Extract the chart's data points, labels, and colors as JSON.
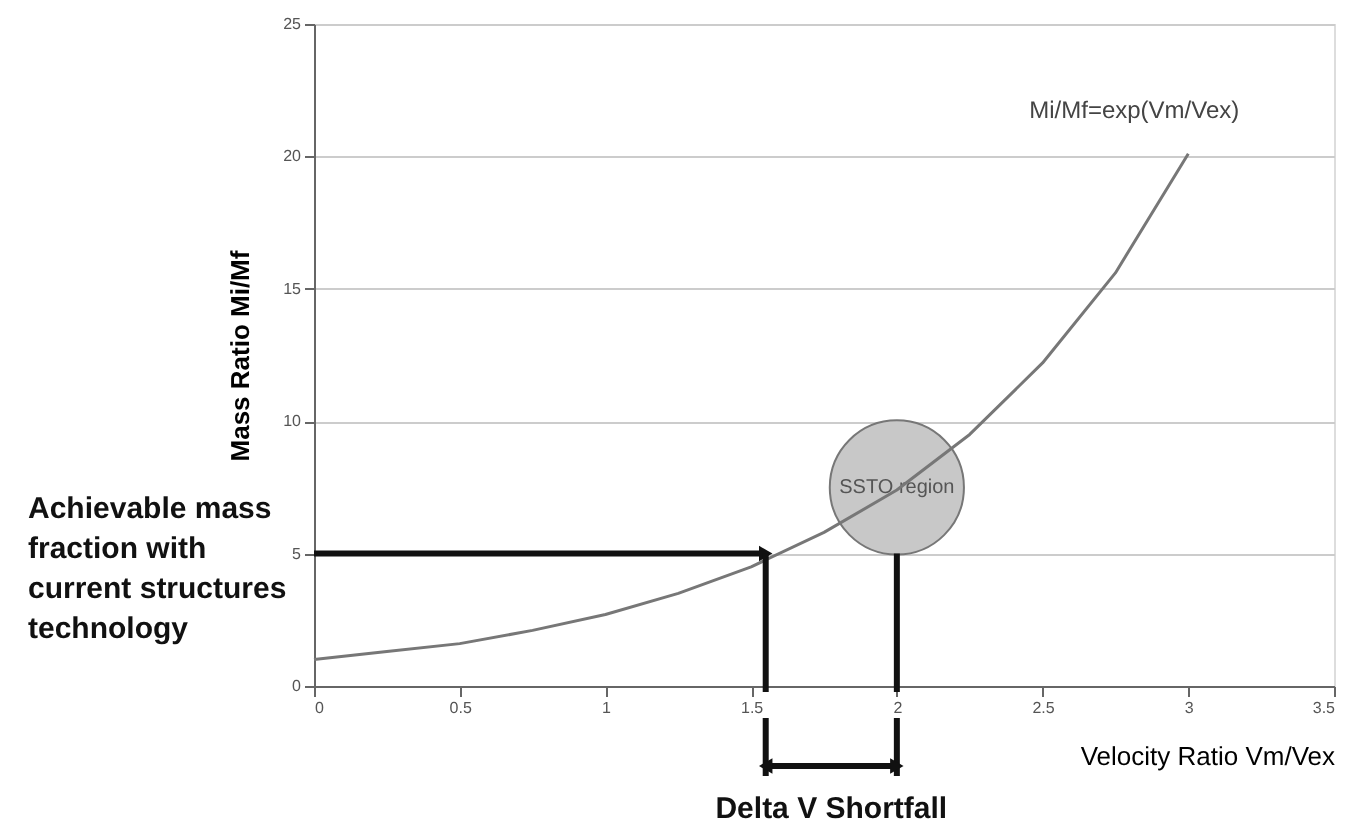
{
  "chart_data": {
    "type": "line",
    "xlabel": "Velocity Ratio Vm/Vex",
    "ylabel": "Mass Ratio Mi/Mf",
    "xlim": [
      0,
      3.5
    ],
    "xticks": [
      0,
      0.5,
      1,
      1.5,
      2,
      2.5,
      3,
      3.5
    ],
    "ylim": [
      0,
      25
    ],
    "yticks": [
      0,
      5,
      10,
      15,
      20,
      25
    ],
    "grid": "y",
    "series": [
      {
        "name": "SSTO region",
        "type": "bubble",
        "color": "#c8c8c8",
        "x": [
          2
        ],
        "values": [
          7.5
        ],
        "sizes": [
          1
        ]
      },
      {
        "name": "Mi/Mf=exp(Vm/Vex)",
        "color": "#777777",
        "x": [
          0,
          0.25,
          0.5,
          0.75,
          1,
          1.25,
          1.5,
          1.75,
          2,
          2.25,
          2.5,
          2.75,
          3
        ],
        "values": [
          1,
          1.3,
          1.6,
          2.1,
          2.7,
          3.5,
          4.5,
          5.8,
          7.4,
          9.5,
          12.2,
          15.6,
          20.1
        ]
      }
    ],
    "ref_lines": [
      {
        "axis": "x",
        "value": 1.55,
        "color": "#111111"
      },
      {
        "axis": "x",
        "value": 2,
        "color": "#111111"
      }
    ],
    "annotations": [
      {
        "text": "Achievable mass fraction with current structures technology",
        "x": 1.55,
        "y": 5
      },
      "Delta V Shortfall"
    ]
  }
}
